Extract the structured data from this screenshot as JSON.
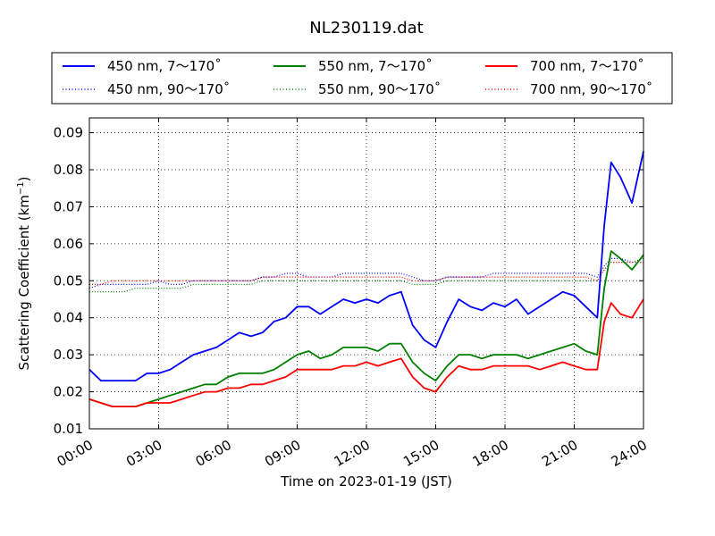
{
  "chart_data": {
    "type": "line",
    "title": "NL230119.dat",
    "xlabel": "Time on 2023-01-19 (JST)",
    "ylabel_main": "Scattering Coefficient (km",
    "ylabel_sup": "−1",
    "ylabel_close": ")",
    "xlim": [
      "00:00",
      "24:00"
    ],
    "ylim": [
      0.01,
      0.094
    ],
    "x_ticks": [
      "00:00",
      "03:00",
      "06:00",
      "09:00",
      "12:00",
      "15:00",
      "18:00",
      "21:00",
      "24:00"
    ],
    "y_ticks": [
      "0.01",
      "0.02",
      "0.03",
      "0.04",
      "0.05",
      "0.06",
      "0.07",
      "0.08",
      "0.09"
    ],
    "y_tick_values": [
      0.01,
      0.02,
      0.03,
      0.04,
      0.05,
      0.06,
      0.07,
      0.08,
      0.09
    ],
    "grid": true,
    "legend": {
      "placement": "top",
      "columns": 3
    },
    "x_hours": [
      0,
      0.5,
      1,
      1.5,
      2,
      2.5,
      3,
      3.5,
      4,
      4.5,
      5,
      5.5,
      6,
      6.5,
      7,
      7.5,
      8,
      8.5,
      9,
      9.5,
      10,
      10.5,
      11,
      11.5,
      12,
      12.5,
      13,
      13.5,
      14,
      14.5,
      15,
      15.5,
      16,
      16.5,
      17,
      17.5,
      18,
      18.5,
      19,
      19.5,
      20,
      20.5,
      21,
      21.5,
      22,
      22.3,
      22.6,
      23,
      23.5,
      24
    ],
    "series": [
      {
        "name": "450 nm, 7～170˚",
        "color": "#0000ff",
        "style": "solid",
        "values": [
          0.026,
          0.023,
          0.023,
          0.023,
          0.023,
          0.025,
          0.025,
          0.026,
          0.028,
          0.03,
          0.031,
          0.032,
          0.034,
          0.036,
          0.035,
          0.036,
          0.039,
          0.04,
          0.043,
          0.043,
          0.041,
          0.043,
          0.045,
          0.044,
          0.045,
          0.044,
          0.046,
          0.047,
          0.038,
          0.034,
          0.032,
          0.039,
          0.045,
          0.043,
          0.042,
          0.044,
          0.043,
          0.045,
          0.041,
          0.043,
          0.045,
          0.047,
          0.046,
          0.043,
          0.04,
          0.065,
          0.082,
          0.078,
          0.071,
          0.085
        ]
      },
      {
        "name": "450 nm, 90～170˚",
        "color": "#0000ff",
        "style": "dotted",
        "values": [
          0.048,
          0.049,
          0.049,
          0.049,
          0.049,
          0.049,
          0.05,
          0.049,
          0.049,
          0.05,
          0.05,
          0.05,
          0.05,
          0.05,
          0.05,
          0.051,
          0.051,
          0.052,
          0.052,
          0.051,
          0.051,
          0.051,
          0.052,
          0.052,
          0.052,
          0.052,
          0.052,
          0.052,
          0.051,
          0.05,
          0.05,
          0.051,
          0.051,
          0.051,
          0.051,
          0.052,
          0.052,
          0.052,
          0.052,
          0.052,
          0.052,
          0.052,
          0.052,
          0.052,
          0.051,
          0.054,
          0.056,
          0.056,
          0.055,
          0.055
        ]
      },
      {
        "name": "550 nm, 7～170˚",
        "color": "#008000",
        "style": "solid",
        "values": [
          0.018,
          0.017,
          0.016,
          0.016,
          0.016,
          0.017,
          0.018,
          0.019,
          0.02,
          0.021,
          0.022,
          0.022,
          0.024,
          0.025,
          0.025,
          0.025,
          0.026,
          0.028,
          0.03,
          0.031,
          0.029,
          0.03,
          0.032,
          0.032,
          0.032,
          0.031,
          0.033,
          0.033,
          0.028,
          0.025,
          0.023,
          0.027,
          0.03,
          0.03,
          0.029,
          0.03,
          0.03,
          0.03,
          0.029,
          0.03,
          0.031,
          0.032,
          0.033,
          0.031,
          0.03,
          0.048,
          0.058,
          0.056,
          0.053,
          0.057
        ]
      },
      {
        "name": "550 nm, 90～170˚",
        "color": "#008000",
        "style": "dotted",
        "values": [
          0.047,
          0.047,
          0.047,
          0.047,
          0.048,
          0.048,
          0.048,
          0.048,
          0.048,
          0.049,
          0.049,
          0.049,
          0.049,
          0.049,
          0.049,
          0.05,
          0.05,
          0.05,
          0.05,
          0.05,
          0.05,
          0.05,
          0.05,
          0.05,
          0.05,
          0.05,
          0.05,
          0.05,
          0.049,
          0.049,
          0.049,
          0.05,
          0.05,
          0.05,
          0.05,
          0.05,
          0.05,
          0.05,
          0.05,
          0.05,
          0.05,
          0.05,
          0.05,
          0.05,
          0.05,
          0.053,
          0.055,
          0.055,
          0.055,
          0.056
        ]
      },
      {
        "name": "700 nm, 7～170˚",
        "color": "#ff0000",
        "style": "solid",
        "values": [
          0.018,
          0.017,
          0.016,
          0.016,
          0.016,
          0.017,
          0.017,
          0.017,
          0.018,
          0.019,
          0.02,
          0.02,
          0.021,
          0.021,
          0.022,
          0.022,
          0.023,
          0.024,
          0.026,
          0.026,
          0.026,
          0.026,
          0.027,
          0.027,
          0.028,
          0.027,
          0.028,
          0.029,
          0.024,
          0.021,
          0.02,
          0.024,
          0.027,
          0.026,
          0.026,
          0.027,
          0.027,
          0.027,
          0.027,
          0.026,
          0.027,
          0.028,
          0.027,
          0.026,
          0.026,
          0.039,
          0.044,
          0.041,
          0.04,
          0.045
        ]
      },
      {
        "name": "700 nm, 90～170˚",
        "color": "#ff0000",
        "style": "dotted",
        "values": [
          0.049,
          0.049,
          0.05,
          0.05,
          0.05,
          0.05,
          0.05,
          0.05,
          0.05,
          0.05,
          0.05,
          0.05,
          0.05,
          0.05,
          0.05,
          0.051,
          0.051,
          0.051,
          0.051,
          0.051,
          0.051,
          0.051,
          0.051,
          0.051,
          0.051,
          0.051,
          0.051,
          0.051,
          0.05,
          0.05,
          0.05,
          0.051,
          0.051,
          0.051,
          0.051,
          0.051,
          0.051,
          0.051,
          0.051,
          0.051,
          0.051,
          0.051,
          0.051,
          0.051,
          0.05,
          0.053,
          0.055,
          0.055,
          0.055,
          0.055
        ]
      }
    ]
  }
}
